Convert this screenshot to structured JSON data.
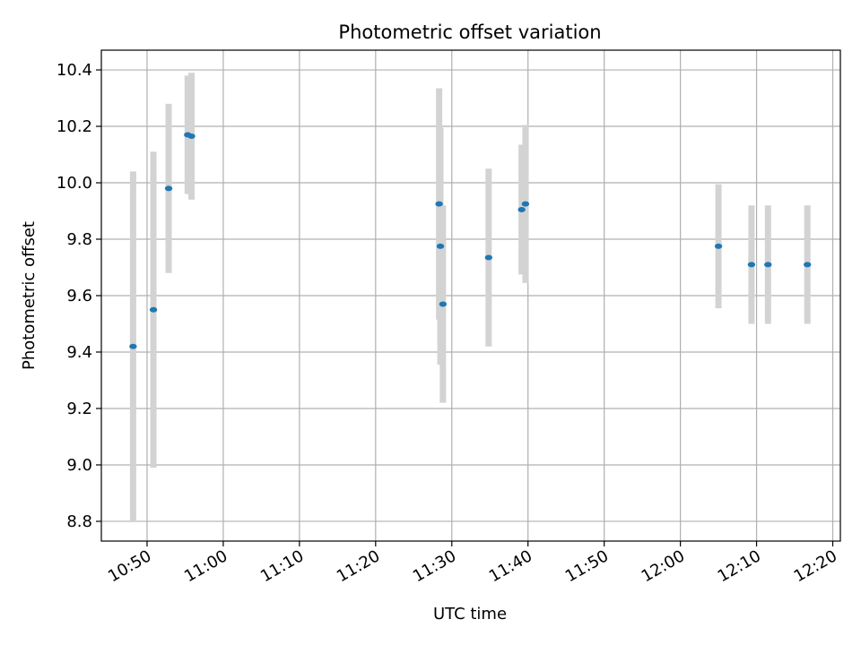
{
  "chart_data": {
    "type": "scatter",
    "title": "Photometric offset variation",
    "xlabel": "UTC time",
    "ylabel": "Photometric offset",
    "xlim": [
      "10:44",
      "12:21"
    ],
    "ylim": [
      8.73,
      10.47
    ],
    "x_ticks": [
      "10:50",
      "11:00",
      "11:10",
      "11:20",
      "11:30",
      "11:40",
      "11:50",
      "12:00",
      "12:10",
      "12:20"
    ],
    "y_ticks": [
      "8.8",
      "9.0",
      "9.2",
      "9.4",
      "9.6",
      "9.8",
      "10.0",
      "10.2",
      "10.4"
    ],
    "grid": true,
    "colors": {
      "point": "#1f77b4",
      "errorbar": "#d3d3d3",
      "grid": "#b0b0b0"
    },
    "points": [
      {
        "time": "10:48:10",
        "y": 9.42,
        "err": 0.62
      },
      {
        "time": "10:50:50",
        "y": 9.55,
        "err": 0.56
      },
      {
        "time": "10:52:50",
        "y": 9.98,
        "err": 0.3
      },
      {
        "time": "10:55:20",
        "y": 10.17,
        "err": 0.21
      },
      {
        "time": "10:55:50",
        "y": 10.165,
        "err": 0.225
      },
      {
        "time": "11:28:20",
        "y": 9.925,
        "err": 0.41
      },
      {
        "time": "11:28:30",
        "y": 9.775,
        "err": 0.42
      },
      {
        "time": "11:28:50",
        "y": 9.57,
        "err": 0.35
      },
      {
        "time": "11:34:50",
        "y": 9.735,
        "err": 0.315
      },
      {
        "time": "11:39:10",
        "y": 9.905,
        "err": 0.23
      },
      {
        "time": "11:39:40",
        "y": 9.925,
        "err": 0.28
      },
      {
        "time": "12:05:00",
        "y": 9.775,
        "err": 0.22
      },
      {
        "time": "12:09:20",
        "y": 9.71,
        "err": 0.21
      },
      {
        "time": "12:11:30",
        "y": 9.71,
        "err": 0.21
      },
      {
        "time": "12:16:40",
        "y": 9.71,
        "err": 0.21
      }
    ]
  }
}
